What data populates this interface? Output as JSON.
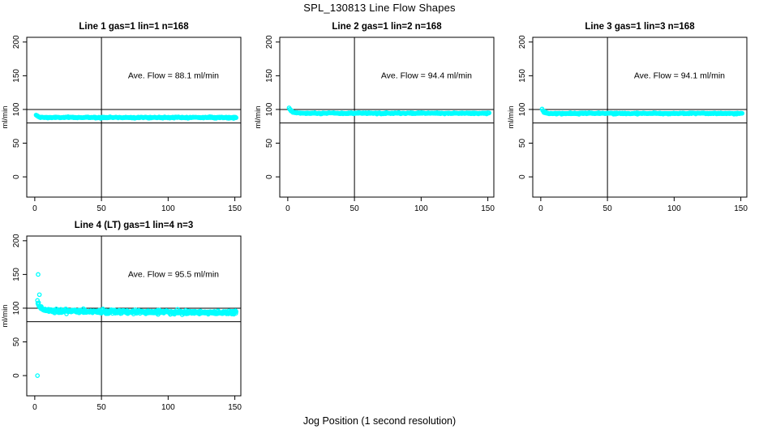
{
  "title": "SPL_130813  Line Flow Shapes",
  "xlabel": "Jog Position (1 second resolution)",
  "colors": {
    "background": "#FFFFFF",
    "foreground": "#000000",
    "points": "#00FFFF"
  },
  "chart_data": [
    {
      "type": "scatter",
      "title": "Line 1 gas=1 lin=1 n=168",
      "ylabel": "ml/min",
      "annotation": {
        "text": "Ave. Flow =  88.1  ml/min",
        "x": 104,
        "y": 150
      },
      "ave_flow_ml_min": 88.1,
      "x_ticks": [
        0,
        50,
        100,
        150
      ],
      "y_ticks": [
        0,
        50,
        100,
        150,
        200
      ],
      "xlim": [
        -6,
        154.5
      ],
      "ylim": [
        -30,
        207
      ],
      "grid": false,
      "ref_lines": {
        "h": [
          80,
          100
        ],
        "v": [
          50
        ]
      },
      "marker": {
        "shape": "open-circle",
        "color": "#00FFFF",
        "radius": 2.2,
        "stroke_width": 1.3
      },
      "series": [
        {
          "name": "flow",
          "x_start": 1,
          "x_end": 151,
          "n_points": 320,
          "start_value": 92,
          "settle_value": 88.1,
          "decay_tau": 1.2,
          "noise_sd": 0.45,
          "end_slope": 0,
          "outliers": []
        }
      ]
    },
    {
      "type": "scatter",
      "title": "Line 2 gas=1 lin=2 n=168",
      "ylabel": "ml/min",
      "annotation": {
        "text": "Ave. Flow =  94.4  ml/min",
        "x": 104,
        "y": 150
      },
      "ave_flow_ml_min": 94.4,
      "x_ticks": [
        0,
        50,
        100,
        150
      ],
      "y_ticks": [
        0,
        50,
        100,
        150,
        200
      ],
      "xlim": [
        -6,
        154.5
      ],
      "ylim": [
        -30,
        207
      ],
      "grid": false,
      "ref_lines": {
        "h": [
          80,
          100
        ],
        "v": [
          50
        ]
      },
      "marker": {
        "shape": "open-circle",
        "color": "#00FFFF",
        "radius": 2.2,
        "stroke_width": 1.3
      },
      "series": [
        {
          "name": "flow",
          "x_start": 1,
          "x_end": 151,
          "n_points": 320,
          "start_value": 103,
          "settle_value": 94.4,
          "decay_tau": 1.8,
          "noise_sd": 0.45,
          "end_slope": 0,
          "outliers": []
        }
      ]
    },
    {
      "type": "scatter",
      "title": "Line 3 gas=1 lin=3 n=168",
      "ylabel": "ml/min",
      "annotation": {
        "text": "Ave. Flow =  94.1  ml/min",
        "x": 104,
        "y": 150
      },
      "ave_flow_ml_min": 94.1,
      "x_ticks": [
        0,
        50,
        100,
        150
      ],
      "y_ticks": [
        0,
        50,
        100,
        150,
        200
      ],
      "xlim": [
        -6,
        154.5
      ],
      "ylim": [
        -30,
        207
      ],
      "grid": false,
      "ref_lines": {
        "h": [
          80,
          100
        ],
        "v": [
          50
        ]
      },
      "marker": {
        "shape": "open-circle",
        "color": "#00FFFF",
        "radius": 2.2,
        "stroke_width": 1.3
      },
      "series": [
        {
          "name": "flow",
          "x_start": 1,
          "x_end": 151,
          "n_points": 320,
          "start_value": 100,
          "settle_value": 94.1,
          "decay_tau": 1.5,
          "noise_sd": 0.45,
          "end_slope": 0,
          "outliers": []
        }
      ]
    },
    {
      "type": "scatter",
      "title": "Line 4 (LT) gas=1 lin=4 n=3",
      "ylabel": "ml/min",
      "annotation": {
        "text": "Ave. Flow =  95.5  ml/min",
        "x": 104,
        "y": 150
      },
      "ave_flow_ml_min": 95.5,
      "x_ticks": [
        0,
        50,
        100,
        150
      ],
      "y_ticks": [
        0,
        50,
        100,
        150,
        200
      ],
      "xlim": [
        -6,
        154.5
      ],
      "ylim": [
        -30,
        207
      ],
      "grid": false,
      "ref_lines": {
        "h": [
          80,
          100
        ],
        "v": [
          50
        ]
      },
      "marker": {
        "shape": "open-circle",
        "color": "#00FFFF",
        "radius": 2.2,
        "stroke_width": 1.3
      },
      "series": [
        {
          "name": "flow",
          "x_start": 2,
          "x_end": 151,
          "n_points": 520,
          "start_value": 110,
          "settle_value": 96,
          "decay_tau": 2.2,
          "noise_sd": 1.3,
          "end_slope": -0.018,
          "outliers": [
            [
              2,
              0
            ],
            [
              2.5,
              150
            ],
            [
              3.5,
              120
            ]
          ]
        }
      ]
    }
  ]
}
